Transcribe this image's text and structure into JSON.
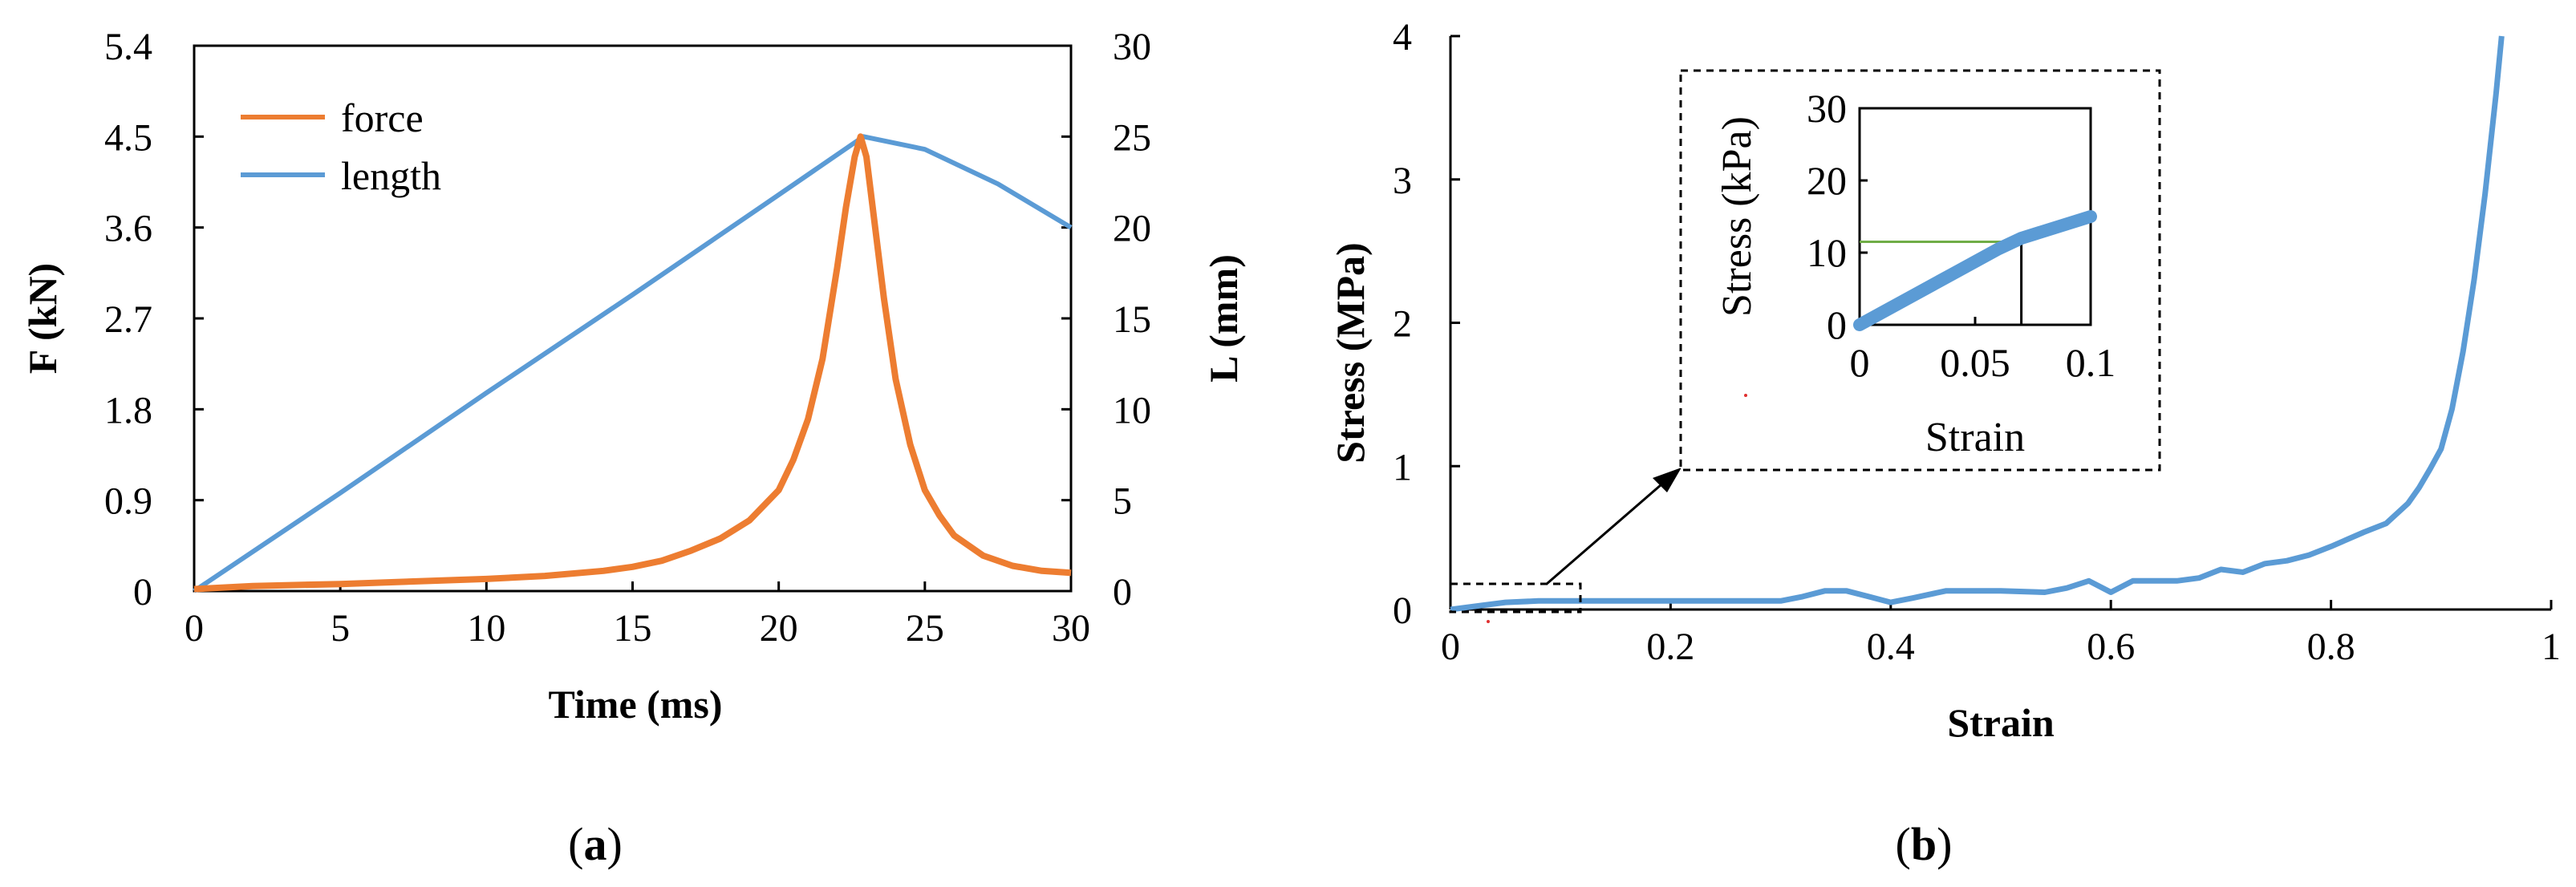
{
  "colors": {
    "force": "#ED7D31",
    "length": "#5B9BD5",
    "marker": "#70AD47"
  },
  "chart_data": [
    {
      "type": "line",
      "panel_label": "(a)",
      "xlabel": "Time  (ms)",
      "ylabel_left": "F (kN)",
      "ylabel_right": "L (mm)",
      "xlim": [
        0,
        30
      ],
      "ylim_left": [
        0,
        5.4
      ],
      "ylim_right": [
        0,
        30
      ],
      "x_ticks": [
        "0",
        "5",
        "10",
        "15",
        "20",
        "25",
        "30"
      ],
      "y_left_ticks": [
        "0",
        "0.9",
        "1.8",
        "2.7",
        "3.6",
        "4.5",
        "5.4"
      ],
      "y_right_ticks": [
        "0",
        "5",
        "10",
        "15",
        "20",
        "25",
        "30"
      ],
      "legend": {
        "placement": "top-left",
        "entries": [
          "force",
          "length"
        ]
      },
      "series": [
        {
          "name": "force",
          "axis": "left",
          "x": [
            0,
            2,
            5,
            8,
            10,
            12,
            14,
            15,
            16,
            17,
            18,
            19,
            20,
            20.5,
            21,
            21.5,
            22,
            22.3,
            22.6,
            22.8,
            23.0,
            23.3,
            23.6,
            24.0,
            24.5,
            25,
            25.5,
            26,
            26.5,
            27,
            28,
            29,
            30
          ],
          "y": [
            0.02,
            0.05,
            0.07,
            0.1,
            0.12,
            0.15,
            0.2,
            0.24,
            0.3,
            0.4,
            0.52,
            0.7,
            1.0,
            1.3,
            1.7,
            2.3,
            3.2,
            3.8,
            4.3,
            4.5,
            4.3,
            3.6,
            2.9,
            2.1,
            1.45,
            1.0,
            0.75,
            0.55,
            0.45,
            0.35,
            0.25,
            0.2,
            0.18
          ]
        },
        {
          "name": "length",
          "axis": "right",
          "x": [
            0,
            5,
            10,
            15,
            20,
            22.9,
            25,
            27.5,
            30
          ],
          "y": [
            0,
            5.4,
            10.9,
            16.3,
            21.8,
            25,
            24.3,
            22.4,
            20
          ]
        }
      ]
    },
    {
      "type": "line",
      "panel_label": "(b)",
      "xlabel": "Strain",
      "ylabel": "Stress (MPa)",
      "xlim": [
        0,
        1
      ],
      "ylim": [
        0,
        4
      ],
      "x_ticks": [
        "0",
        "0.2",
        "0.4",
        "0.6",
        "0.8",
        "1"
      ],
      "y_ticks": [
        "0",
        "1",
        "2",
        "3",
        "4"
      ],
      "series": [
        {
          "name": "stress",
          "x": [
            0,
            0.03,
            0.05,
            0.08,
            0.12,
            0.2,
            0.3,
            0.32,
            0.34,
            0.36,
            0.38,
            0.4,
            0.42,
            0.45,
            0.5,
            0.54,
            0.56,
            0.58,
            0.6,
            0.62,
            0.66,
            0.68,
            0.7,
            0.72,
            0.74,
            0.76,
            0.78,
            0.8,
            0.83,
            0.85,
            0.87,
            0.88,
            0.89,
            0.9,
            0.91,
            0.92,
            0.93,
            0.94,
            0.95,
            0.955
          ],
          "y": [
            0,
            0.03,
            0.05,
            0.06,
            0.06,
            0.06,
            0.06,
            0.09,
            0.13,
            0.13,
            0.09,
            0.05,
            0.08,
            0.13,
            0.13,
            0.12,
            0.15,
            0.2,
            0.12,
            0.2,
            0.2,
            0.22,
            0.28,
            0.26,
            0.32,
            0.34,
            0.38,
            0.44,
            0.54,
            0.6,
            0.74,
            0.85,
            0.98,
            1.12,
            1.4,
            1.8,
            2.3,
            2.9,
            3.6,
            4.0
          ]
        }
      ],
      "inset": {
        "xlabel": "Strain",
        "ylabel": "Stress (kPa)",
        "xlim": [
          0,
          0.1
        ],
        "ylim": [
          0,
          30
        ],
        "x_ticks": [
          "0",
          "0.05",
          "0.1"
        ],
        "y_ticks": [
          "0",
          "10",
          "20",
          "30"
        ],
        "series": [
          {
            "name": "stress",
            "x": [
              0,
              0.02,
              0.04,
              0.06,
              0.07,
              0.08,
              0.09,
              0.1
            ],
            "y": [
              0,
              3.5,
              7,
              10.5,
              12,
              13,
              14,
              15
            ]
          }
        ],
        "yield_line": {
          "stress": 11.5,
          "strain": 0.07
        }
      }
    }
  ]
}
